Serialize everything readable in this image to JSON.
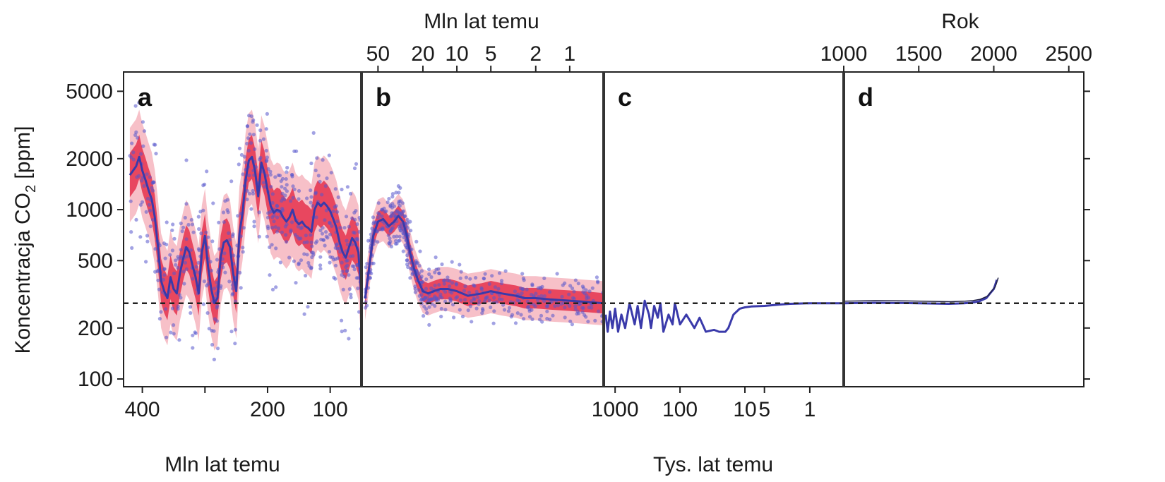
{
  "chart_data": {
    "type": "line",
    "y_axis": {
      "label": "Koncentracja CO",
      "label_subscript": "2",
      "label_unit": "[ppm]",
      "scale": "log",
      "range": [
        90,
        6500
      ],
      "ticks": [
        100,
        200,
        500,
        1000,
        2000,
        5000
      ],
      "tick_labels": [
        "100",
        "200",
        "500",
        "1000",
        "2000",
        "5000"
      ]
    },
    "reference_line": {
      "value": 280,
      "style": "dashed"
    },
    "bottom_titles": [
      "Mln lat temu",
      "Tys. lat temu"
    ],
    "top_titles": [
      "Mln lat temu",
      "Rok"
    ],
    "colors": {
      "series": "#3a3aaa",
      "points": "#5555cc",
      "band_inner": "#e8475f",
      "band_outer": "#f7c0c8",
      "reference": "#222222",
      "modern_line": "#222244"
    },
    "panels": [
      {
        "letter": "a",
        "x_scale": "linear",
        "x_unit": "Mln lat temu",
        "x_range": [
          430,
          50
        ],
        "bottom_ticks": [
          400,
          300,
          200,
          100
        ],
        "bottom_tick_labels": [
          "400",
          "",
          "200",
          "100"
        ],
        "series": {
          "x": [
            420,
            410,
            405,
            400,
            395,
            390,
            385,
            380,
            375,
            370,
            365,
            360,
            355,
            350,
            345,
            340,
            335,
            330,
            325,
            320,
            315,
            310,
            305,
            300,
            295,
            290,
            285,
            280,
            275,
            270,
            265,
            260,
            255,
            250,
            245,
            240,
            235,
            230,
            225,
            220,
            215,
            210,
            205,
            200,
            195,
            190,
            185,
            180,
            175,
            170,
            165,
            160,
            155,
            150,
            145,
            140,
            135,
            130,
            125,
            120,
            115,
            110,
            105,
            100,
            95,
            90,
            85,
            80,
            75,
            70,
            65,
            60,
            55,
            50
          ],
          "y": [
            1600,
            1800,
            2050,
            1700,
            1500,
            1300,
            1150,
            900,
            600,
            380,
            330,
            300,
            400,
            340,
            320,
            420,
            510,
            600,
            560,
            470,
            400,
            320,
            560,
            700,
            460,
            340,
            280,
            300,
            520,
            640,
            660,
            600,
            420,
            330,
            720,
            950,
            1500,
            1950,
            2050,
            1700,
            1200,
            1900,
            1650,
            1300,
            1050,
            960,
            1000,
            980,
            900,
            850,
            900,
            1000,
            860,
            820,
            850,
            800,
            780,
            740,
            1000,
            1100,
            1050,
            1100,
            1050,
            980,
            880,
            780,
            640,
            560,
            520,
            600,
            680,
            640,
            560,
            300
          ]
        }
      },
      {
        "letter": "b",
        "x_scale": "log",
        "x_unit": "Mln lat temu",
        "x_range": [
          70,
          0.5
        ],
        "top_ticks": [
          50,
          20,
          10,
          5,
          2,
          1
        ],
        "top_tick_labels": [
          "50",
          "20",
          "10",
          "5",
          "2",
          "1"
        ],
        "series": {
          "x": [
            65,
            60,
            55,
            50,
            45,
            40,
            36,
            33,
            30,
            28,
            26,
            24,
            22,
            20,
            18,
            16,
            14,
            12,
            10,
            8,
            6,
            5,
            4,
            3,
            2.5,
            2,
            1.5,
            1,
            0.7,
            0.5
          ],
          "y": [
            300,
            450,
            700,
            850,
            880,
            800,
            850,
            920,
            850,
            720,
            560,
            450,
            380,
            330,
            320,
            330,
            340,
            340,
            330,
            310,
            320,
            330,
            320,
            310,
            300,
            300,
            295,
            290,
            285,
            280
          ]
        }
      },
      {
        "letter": "c",
        "x_scale": "log",
        "x_unit": "Tys. lat temu",
        "x_range": [
          1500,
          0.3
        ],
        "bottom_ticks": [
          1000,
          100,
          10,
          5,
          1
        ],
        "bottom_tick_labels": [
          "1000",
          "100",
          "10",
          "5",
          "1"
        ],
        "series": {
          "x": [
            1400,
            1300,
            1200,
            1100,
            1000,
            900,
            800,
            700,
            600,
            500,
            450,
            400,
            350,
            300,
            280,
            250,
            220,
            200,
            180,
            150,
            130,
            120,
            100,
            80,
            60,
            50,
            40,
            30,
            25,
            20,
            18,
            15,
            12,
            10,
            8,
            5,
            3,
            2,
            1,
            0.5,
            0.3
          ],
          "y": [
            240,
            190,
            250,
            200,
            260,
            190,
            240,
            200,
            280,
            210,
            270,
            200,
            290,
            240,
            200,
            270,
            230,
            280,
            190,
            240,
            210,
            280,
            210,
            240,
            200,
            230,
            190,
            195,
            190,
            190,
            200,
            240,
            260,
            265,
            268,
            270,
            275,
            278,
            280,
            280,
            280
          ]
        }
      },
      {
        "letter": "d",
        "x_scale": "linear",
        "x_unit": "Rok",
        "x_range": [
          1000,
          2600
        ],
        "top_ticks": [
          1000,
          1500,
          2000,
          2500
        ],
        "top_tick_labels": [
          "1000",
          "1500",
          "2000",
          "2500"
        ],
        "series": {
          "x": [
            1000,
            1200,
            1400,
            1600,
            1700,
            1800,
            1850,
            1900,
            1950,
            1975,
            2000,
            2010,
            2020
          ],
          "y": [
            280,
            282,
            281,
            279,
            278,
            280,
            282,
            287,
            300,
            320,
            340,
            360,
            385
          ]
        }
      }
    ]
  }
}
